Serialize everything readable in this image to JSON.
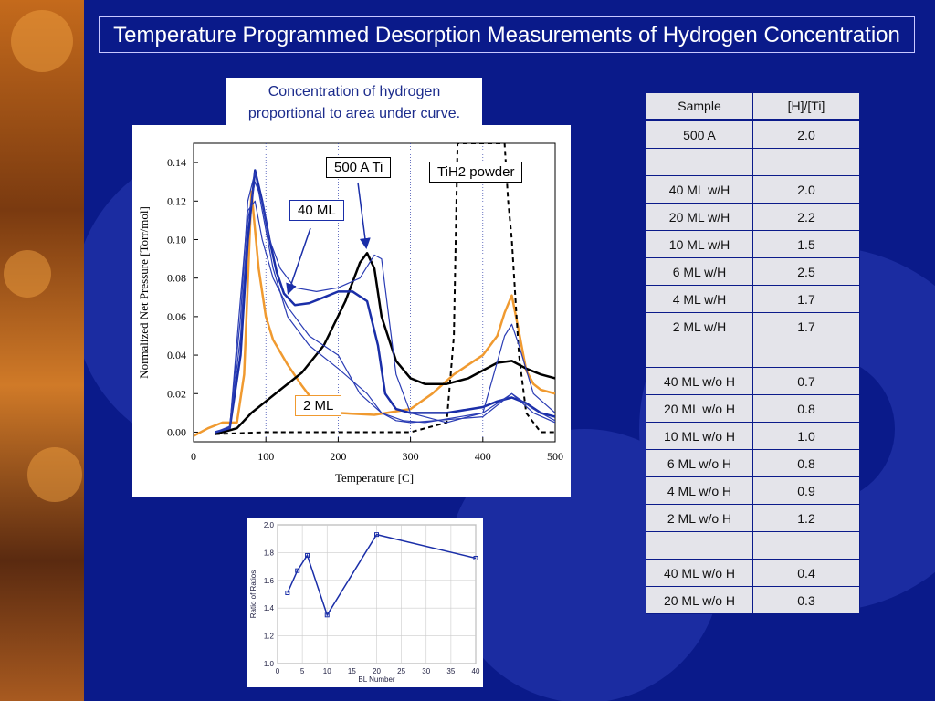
{
  "slide": {
    "title": "Temperature Programmed Desorption Measurements of Hydrogen Concentration",
    "note_line1": "Concentration of hydrogen",
    "note_line2": "proportional to area under curve."
  },
  "callouts": {
    "ti500": "500 A Ti",
    "tih2": "TiH2 powder",
    "ml40": "40 ML",
    "ml2": "2 ML"
  },
  "table": {
    "headers": [
      "Sample",
      "[H]/[Ti]"
    ],
    "rows": [
      [
        "500 A",
        "2.0"
      ],
      [
        "",
        ""
      ],
      [
        "40 ML w/H",
        "2.0"
      ],
      [
        "20 ML w/H",
        "2.2"
      ],
      [
        "10 ML w/H",
        "1.5"
      ],
      [
        "6 ML w/H",
        "2.5"
      ],
      [
        "4 ML w/H",
        "1.7"
      ],
      [
        "2 ML w/H",
        "1.7"
      ],
      [
        "",
        ""
      ],
      [
        "40 ML w/o H",
        "0.7"
      ],
      [
        "20 ML w/o H",
        "0.8"
      ],
      [
        "10 ML w/o H",
        "1.0"
      ],
      [
        "6 ML w/o H",
        "0.8"
      ],
      [
        "4 ML w/o H",
        "0.9"
      ],
      [
        "2 ML w/o H",
        "1.2"
      ],
      [
        "",
        ""
      ],
      [
        "40 ML w/o H",
        "0.4"
      ],
      [
        "20 ML w/o H",
        "0.3"
      ]
    ]
  },
  "colors": {
    "background": "#0a1a8a",
    "navy": "#1a2ea8",
    "orange": "#f09a30",
    "black": "#000000"
  },
  "chart_data": [
    {
      "type": "line",
      "xlabel": "Temperature [C]",
      "ylabel": "Normalized Net Pressure [Torr/mol]",
      "xlim": [
        0,
        500
      ],
      "ylim": [
        -0.005,
        0.15
      ],
      "xticks": [
        0,
        100,
        200,
        300,
        400,
        500
      ],
      "yticks": [
        0.0,
        0.02,
        0.04,
        0.06,
        0.08,
        0.1,
        0.12,
        0.14
      ],
      "ytick_labels": [
        "0.00",
        "0.02",
        "0.04",
        "0.06",
        "0.08",
        "0.10",
        "0.12",
        "0.14"
      ],
      "vlines": [
        100,
        200,
        300,
        400
      ],
      "series": [
        {
          "style": "orange",
          "x": [
            0,
            20,
            40,
            60,
            70,
            80,
            90,
            100,
            110,
            130,
            150,
            170,
            200,
            250,
            300,
            330,
            360,
            380,
            400,
            420,
            430,
            440,
            450,
            460,
            470,
            480,
            500
          ],
          "y": [
            -0.002,
            0.002,
            0.005,
            0.005,
            0.03,
            0.125,
            0.085,
            0.06,
            0.048,
            0.035,
            0.024,
            0.014,
            0.01,
            0.009,
            0.012,
            0.02,
            0.03,
            0.035,
            0.04,
            0.05,
            0.062,
            0.071,
            0.052,
            0.032,
            0.025,
            0.022,
            0.02
          ]
        },
        {
          "style": "black",
          "x": [
            30,
            60,
            80,
            100,
            120,
            150,
            180,
            210,
            230,
            240,
            250,
            260,
            280,
            300,
            320,
            350,
            380,
            400,
            420,
            440,
            460,
            480,
            500
          ],
          "y": [
            -0.001,
            0.002,
            0.01,
            0.016,
            0.022,
            0.031,
            0.045,
            0.068,
            0.088,
            0.093,
            0.085,
            0.06,
            0.037,
            0.028,
            0.025,
            0.025,
            0.028,
            0.032,
            0.036,
            0.037,
            0.033,
            0.03,
            0.028
          ]
        },
        {
          "style": "dashed",
          "x": [
            30,
            100,
            200,
            300,
            350,
            360,
            365,
            370,
            380,
            390,
            400,
            410,
            420,
            425,
            430,
            435,
            440,
            445,
            450,
            460,
            480,
            500
          ],
          "y": [
            -0.001,
            0.0,
            0.0,
            0.0,
            0.005,
            0.05,
            0.15,
            0.15,
            0.15,
            0.15,
            0.15,
            0.15,
            0.15,
            0.15,
            0.15,
            0.12,
            0.1,
            0.07,
            0.04,
            0.01,
            0.0,
            0.0
          ]
        },
        {
          "style": "navy",
          "x": [
            30,
            50,
            65,
            75,
            85,
            95,
            105,
            115,
            125,
            140,
            160,
            180,
            200,
            220,
            240,
            255,
            265,
            280,
            300,
            350,
            400,
            420,
            440,
            460,
            480,
            500
          ],
          "y": [
            0.0,
            0.002,
            0.04,
            0.1,
            0.136,
            0.12,
            0.1,
            0.083,
            0.072,
            0.066,
            0.067,
            0.07,
            0.073,
            0.073,
            0.068,
            0.045,
            0.02,
            0.012,
            0.01,
            0.01,
            0.013,
            0.016,
            0.018,
            0.015,
            0.01,
            0.008
          ]
        },
        {
          "style": "thin",
          "x": [
            30,
            50,
            65,
            75,
            85,
            95,
            105,
            120,
            140,
            170,
            200,
            230,
            250,
            260,
            270,
            280,
            300,
            350,
            400,
            430,
            440,
            450,
            470,
            500
          ],
          "y": [
            0.0,
            0.002,
            0.05,
            0.11,
            0.13,
            0.12,
            0.1,
            0.085,
            0.075,
            0.073,
            0.075,
            0.08,
            0.092,
            0.09,
            0.06,
            0.03,
            0.01,
            0.005,
            0.01,
            0.05,
            0.056,
            0.045,
            0.02,
            0.01
          ]
        },
        {
          "style": "thin",
          "x": [
            30,
            50,
            65,
            75,
            85,
            95,
            110,
            130,
            160,
            200,
            240,
            260,
            280,
            300,
            400,
            440,
            470,
            500
          ],
          "y": [
            0.0,
            0.003,
            0.06,
            0.12,
            0.135,
            0.115,
            0.085,
            0.06,
            0.045,
            0.033,
            0.02,
            0.01,
            0.006,
            0.005,
            0.008,
            0.02,
            0.01,
            0.005
          ]
        },
        {
          "style": "thin",
          "x": [
            30,
            50,
            65,
            75,
            85,
            95,
            110,
            130,
            160,
            200,
            230,
            260,
            290,
            320,
            400,
            440,
            470,
            500
          ],
          "y": [
            0.0,
            0.002,
            0.07,
            0.115,
            0.12,
            0.1,
            0.08,
            0.065,
            0.05,
            0.04,
            0.02,
            0.01,
            0.006,
            0.005,
            0.01,
            0.02,
            0.012,
            0.006
          ]
        }
      ]
    },
    {
      "type": "line",
      "xlabel": "BL Number",
      "ylabel": "Ratio of Ratios",
      "xlim": [
        0,
        40
      ],
      "ylim": [
        1.0,
        2.0
      ],
      "xticks": [
        0,
        5,
        10,
        15,
        20,
        25,
        30,
        35,
        40
      ],
      "yticks": [
        1.0,
        1.2,
        1.4,
        1.6,
        1.8,
        2.0
      ],
      "ytick_labels": [
        "1.0",
        "1.2",
        "1.4",
        "1.6",
        "1.8",
        "2.0"
      ],
      "series": [
        {
          "x": [
            2,
            4,
            6,
            10,
            20,
            40
          ],
          "y": [
            1.51,
            1.67,
            1.78,
            1.35,
            1.93,
            1.76
          ]
        }
      ]
    }
  ]
}
